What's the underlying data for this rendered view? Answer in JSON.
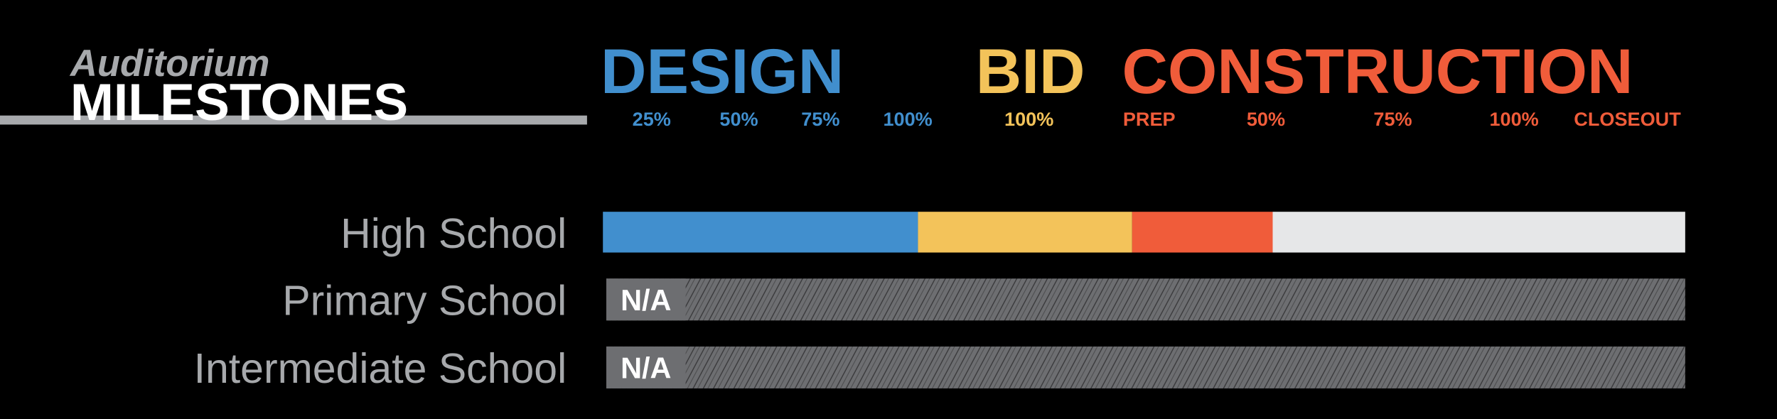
{
  "title": {
    "line1": "Auditorium",
    "line2": "MILESTONES"
  },
  "phases": [
    {
      "name": "DESIGN",
      "milestones": [
        "25%",
        "50%",
        "75%",
        "100%"
      ]
    },
    {
      "name": "BID",
      "milestones": [
        "100%"
      ]
    },
    {
      "name": "CONSTRUCTION",
      "milestones": [
        "PREP",
        "50%",
        "75%",
        "100%",
        "CLOSEOUT"
      ]
    }
  ],
  "rows": [
    {
      "label": "High School"
    },
    {
      "label": "Primary School",
      "status": "N/A"
    },
    {
      "label": "Intermediate School",
      "status": "N/A"
    }
  ]
}
